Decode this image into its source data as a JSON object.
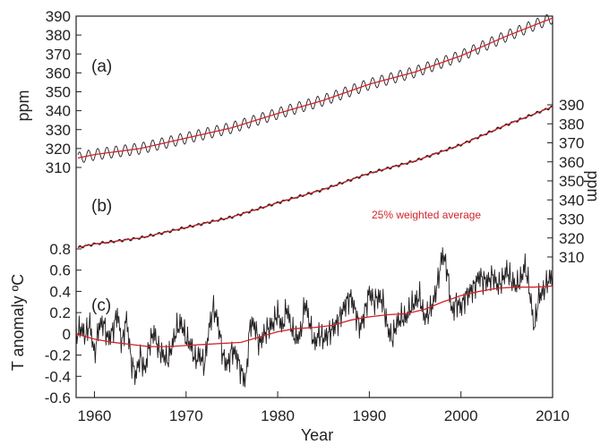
{
  "chart_data": [
    {
      "panel": "(a)",
      "type": "line",
      "ylabel": "ppm",
      "ylim": [
        303,
        390
      ],
      "yticks": [
        310,
        320,
        330,
        340,
        350,
        360,
        370,
        380,
        390
      ],
      "xlim": [
        1958,
        2010
      ],
      "series": [
        {
          "role": "monthly_co2",
          "color": "#231f20",
          "trend_points": [
            [
              1958.2,
              315.0
            ],
            [
              1960,
              316.8
            ],
            [
              1965,
              320.0
            ],
            [
              1970,
              325.5
            ],
            [
              1975,
              331.0
            ],
            [
              1980,
              338.5
            ],
            [
              1985,
              345.5
            ],
            [
              1990,
              354.0
            ],
            [
              1995,
              360.5
            ],
            [
              2000,
              369.0
            ],
            [
              2005,
              379.5
            ],
            [
              2010,
              389.0
            ]
          ],
          "seasonal_amplitude": 3.0
        },
        {
          "role": "smoothed_trend",
          "color": "#d2232a",
          "points": [
            [
              1958.2,
              315.0
            ],
            [
              1960,
              316.8
            ],
            [
              1965,
              320.0
            ],
            [
              1970,
              325.5
            ],
            [
              1975,
              331.0
            ],
            [
              1980,
              338.5
            ],
            [
              1985,
              345.5
            ],
            [
              1990,
              354.0
            ],
            [
              1995,
              360.5
            ],
            [
              2000,
              369.0
            ],
            [
              2005,
              379.5
            ],
            [
              2010,
              389.0
            ]
          ]
        }
      ]
    },
    {
      "panel": "(b)",
      "type": "line",
      "ylabel": "ppm",
      "ylim": [
        303,
        390
      ],
      "yticks": [
        310,
        320,
        330,
        340,
        350,
        360,
        370,
        380,
        390
      ],
      "xlim": [
        1958,
        2010
      ],
      "annotation": "25% weighted average",
      "annotation_color": "#d2232a",
      "series": [
        {
          "role": "deseasonalized_co2",
          "color": "#231f20",
          "points": [
            [
              1958.2,
              315.0
            ],
            [
              1960,
              316.8
            ],
            [
              1965,
              320.0
            ],
            [
              1970,
              325.5
            ],
            [
              1975,
              331.0
            ],
            [
              1980,
              338.5
            ],
            [
              1985,
              345.5
            ],
            [
              1990,
              354.0
            ],
            [
              1995,
              360.5
            ],
            [
              2000,
              369.0
            ],
            [
              2005,
              379.5
            ],
            [
              2010,
              389.0
            ]
          ]
        },
        {
          "role": "weighted_average",
          "color": "#d2232a",
          "points": [
            [
              1958.2,
              315.0
            ],
            [
              1960,
              316.8
            ],
            [
              1965,
              320.0
            ],
            [
              1970,
              325.5
            ],
            [
              1975,
              331.0
            ],
            [
              1980,
              338.5
            ],
            [
              1985,
              345.5
            ],
            [
              1990,
              354.0
            ],
            [
              1995,
              360.5
            ],
            [
              2000,
              369.0
            ],
            [
              2005,
              379.5
            ],
            [
              2010,
              389.0
            ]
          ]
        }
      ]
    },
    {
      "panel": "(c)",
      "type": "line",
      "ylabel": "T anomaly ºC",
      "xlabel": "Year",
      "ylim": [
        -0.6,
        0.8
      ],
      "yticks": [
        -0.6,
        -0.4,
        -0.2,
        0,
        0.2,
        0.4,
        0.6,
        0.8
      ],
      "ytick_labels": [
        "-0.6",
        "-0.4",
        "-0.2",
        "0",
        "0.2",
        "0.4",
        "0.6",
        "0.8"
      ],
      "xlim": [
        1958,
        2010
      ],
      "xticks": [
        1960,
        1970,
        1980,
        1990,
        2000,
        2010
      ],
      "series": [
        {
          "role": "monthly_temperature_anomaly",
          "color": "#231f20",
          "points": [
            [
              1958,
              -0.02
            ],
            [
              1958.5,
              0.06
            ],
            [
              1959,
              -0.02
            ],
            [
              1959.5,
              0.1
            ],
            [
              1960,
              -0.2
            ],
            [
              1960.5,
              0.08
            ],
            [
              1961,
              0.1
            ],
            [
              1961.5,
              -0.05
            ],
            [
              1962,
              0.03
            ],
            [
              1962.5,
              0.2
            ],
            [
              1963,
              -0.1
            ],
            [
              1963.5,
              0.15
            ],
            [
              1964,
              -0.25
            ],
            [
              1964.5,
              -0.4
            ],
            [
              1965,
              -0.2
            ],
            [
              1965.5,
              -0.35
            ],
            [
              1966,
              -0.1
            ],
            [
              1966.5,
              0.02
            ],
            [
              1967,
              -0.15
            ],
            [
              1967.5,
              -0.2
            ],
            [
              1968,
              -0.25
            ],
            [
              1968.5,
              -0.1
            ],
            [
              1969,
              0.05
            ],
            [
              1969.5,
              0.1
            ],
            [
              1970,
              -0.05
            ],
            [
              1970.5,
              -0.1
            ],
            [
              1971,
              -0.25
            ],
            [
              1971.5,
              -0.2
            ],
            [
              1972,
              -0.3
            ],
            [
              1972.5,
              0.05
            ],
            [
              1973,
              0.25
            ],
            [
              1973.5,
              0.1
            ],
            [
              1974,
              -0.2
            ],
            [
              1974.5,
              -0.3
            ],
            [
              1975,
              -0.15
            ],
            [
              1975.5,
              -0.2
            ],
            [
              1976,
              -0.35
            ],
            [
              1976.5,
              -0.45
            ],
            [
              1977,
              0.1
            ],
            [
              1977.5,
              0.08
            ],
            [
              1978,
              -0.1
            ],
            [
              1978.5,
              0.0
            ],
            [
              1979,
              0.05
            ],
            [
              1979.5,
              0.1
            ],
            [
              1980,
              0.2
            ],
            [
              1980.5,
              0.05
            ],
            [
              1981,
              0.25
            ],
            [
              1981.5,
              0.05
            ],
            [
              1982,
              -0.05
            ],
            [
              1982.5,
              0.0
            ],
            [
              1983,
              0.3
            ],
            [
              1983.5,
              0.1
            ],
            [
              1984,
              -0.1
            ],
            [
              1984.5,
              0.0
            ],
            [
              1985,
              -0.05
            ],
            [
              1985.5,
              0.0
            ],
            [
              1986,
              0.05
            ],
            [
              1986.5,
              0.1
            ],
            [
              1987,
              0.2
            ],
            [
              1987.5,
              0.3
            ],
            [
              1988,
              0.35
            ],
            [
              1988.5,
              0.2
            ],
            [
              1989,
              0.05
            ],
            [
              1989.5,
              0.2
            ],
            [
              1990,
              0.4
            ],
            [
              1990.5,
              0.3
            ],
            [
              1991,
              0.35
            ],
            [
              1991.5,
              0.3
            ],
            [
              1992,
              0.05
            ],
            [
              1992.5,
              -0.05
            ],
            [
              1993,
              0.1
            ],
            [
              1993.5,
              0.15
            ],
            [
              1994,
              0.15
            ],
            [
              1994.5,
              0.25
            ],
            [
              1995,
              0.3
            ],
            [
              1995.5,
              0.35
            ],
            [
              1996,
              0.15
            ],
            [
              1996.5,
              0.2
            ],
            [
              1997,
              0.3
            ],
            [
              1997.5,
              0.5
            ],
            [
              1998,
              0.76
            ],
            [
              1998.5,
              0.6
            ],
            [
              1999,
              0.2
            ],
            [
              1999.5,
              0.3
            ],
            [
              2000,
              0.25
            ],
            [
              2000.5,
              0.35
            ],
            [
              2001,
              0.4
            ],
            [
              2001.5,
              0.45
            ],
            [
              2002,
              0.55
            ],
            [
              2002.5,
              0.5
            ],
            [
              2003,
              0.5
            ],
            [
              2003.5,
              0.55
            ],
            [
              2004,
              0.45
            ],
            [
              2004.5,
              0.5
            ],
            [
              2005,
              0.6
            ],
            [
              2005.5,
              0.5
            ],
            [
              2006,
              0.45
            ],
            [
              2006.5,
              0.5
            ],
            [
              2007,
              0.65
            ],
            [
              2007.5,
              0.4
            ],
            [
              2008,
              0.05
            ],
            [
              2008.5,
              0.35
            ],
            [
              2009,
              0.4
            ],
            [
              2009.5,
              0.5
            ],
            [
              2010,
              0.55
            ]
          ]
        },
        {
          "role": "smoothed_trend",
          "color": "#d2232a",
          "points": [
            [
              1958,
              0.0
            ],
            [
              1960,
              -0.05
            ],
            [
              1962,
              -0.08
            ],
            [
              1964,
              -0.1
            ],
            [
              1966,
              -0.12
            ],
            [
              1968,
              -0.12
            ],
            [
              1970,
              -0.11
            ],
            [
              1972,
              -0.1
            ],
            [
              1974,
              -0.09
            ],
            [
              1976,
              -0.08
            ],
            [
              1978,
              -0.03
            ],
            [
              1980,
              0.02
            ],
            [
              1982,
              0.05
            ],
            [
              1984,
              0.06
            ],
            [
              1986,
              0.08
            ],
            [
              1988,
              0.13
            ],
            [
              1990,
              0.16
            ],
            [
              1992,
              0.18
            ],
            [
              1994,
              0.19
            ],
            [
              1996,
              0.23
            ],
            [
              1998,
              0.3
            ],
            [
              2000,
              0.36
            ],
            [
              2002,
              0.4
            ],
            [
              2004,
              0.43
            ],
            [
              2006,
              0.44
            ],
            [
              2008,
              0.44
            ],
            [
              2010,
              0.45
            ]
          ]
        }
      ]
    }
  ]
}
